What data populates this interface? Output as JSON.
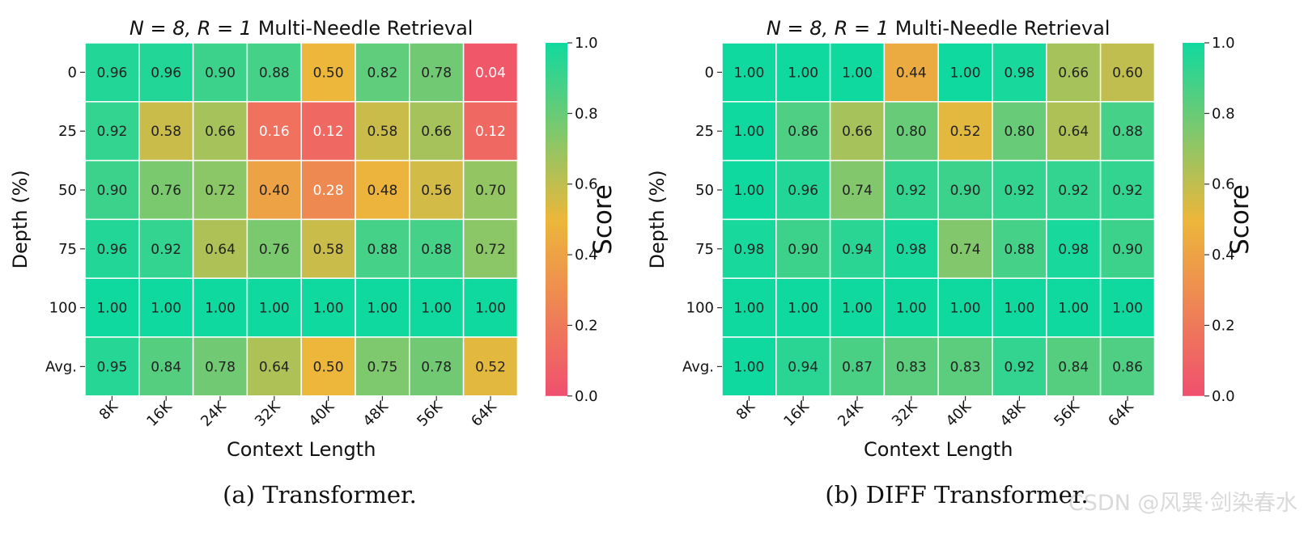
{
  "chart_data": [
    {
      "type": "heatmap",
      "title_math": "N = 8, R = 1",
      "title_text": "Multi-Needle Retrieval",
      "xlabel": "Context Length",
      "ylabel": "Depth (%)",
      "x_categories": [
        "8K",
        "16K",
        "24K",
        "32K",
        "40K",
        "48K",
        "56K",
        "64K"
      ],
      "y_categories": [
        "0",
        "25",
        "50",
        "75",
        "100",
        "Avg."
      ],
      "values": [
        [
          0.96,
          0.96,
          0.9,
          0.88,
          0.5,
          0.82,
          0.78,
          0.04
        ],
        [
          0.92,
          0.58,
          0.66,
          0.16,
          0.12,
          0.58,
          0.66,
          0.12
        ],
        [
          0.9,
          0.76,
          0.72,
          0.4,
          0.28,
          0.48,
          0.56,
          0.7
        ],
        [
          0.96,
          0.92,
          0.64,
          0.76,
          0.58,
          0.88,
          0.88,
          0.72
        ],
        [
          1.0,
          1.0,
          1.0,
          1.0,
          1.0,
          1.0,
          1.0,
          1.0
        ],
        [
          0.95,
          0.84,
          0.78,
          0.64,
          0.5,
          0.75,
          0.78,
          0.52
        ]
      ],
      "colorbar": {
        "label": "Score",
        "range": [
          0.0,
          1.0
        ],
        "ticks": [
          "0.0",
          "0.2",
          "0.4",
          "0.6",
          "0.8",
          "1.0"
        ]
      },
      "caption": "(a) Transformer."
    },
    {
      "type": "heatmap",
      "title_math": "N = 8, R = 1",
      "title_text": "Multi-Needle Retrieval",
      "xlabel": "Context Length",
      "ylabel": "Depth (%)",
      "x_categories": [
        "8K",
        "16K",
        "24K",
        "32K",
        "40K",
        "48K",
        "56K",
        "64K"
      ],
      "y_categories": [
        "0",
        "25",
        "50",
        "75",
        "100",
        "Avg."
      ],
      "values": [
        [
          1.0,
          1.0,
          1.0,
          0.44,
          1.0,
          0.98,
          0.66,
          0.6
        ],
        [
          1.0,
          0.86,
          0.66,
          0.8,
          0.52,
          0.8,
          0.64,
          0.88
        ],
        [
          1.0,
          0.96,
          0.74,
          0.92,
          0.9,
          0.92,
          0.92,
          0.92
        ],
        [
          0.98,
          0.9,
          0.94,
          0.98,
          0.74,
          0.88,
          0.98,
          0.9
        ],
        [
          1.0,
          1.0,
          1.0,
          1.0,
          1.0,
          1.0,
          1.0,
          1.0
        ],
        [
          1.0,
          0.94,
          0.87,
          0.83,
          0.83,
          0.92,
          0.84,
          0.86
        ]
      ],
      "colorbar": {
        "label": "Score",
        "range": [
          0.0,
          1.0
        ],
        "ticks": [
          "0.0",
          "0.2",
          "0.4",
          "0.6",
          "0.8",
          "1.0"
        ]
      },
      "caption": "(b) DIFF Transformer."
    }
  ],
  "colormap": {
    "stops": [
      {
        "v": 0.0,
        "color": "#f0506e"
      },
      {
        "v": 0.5,
        "color": "#ecb73b"
      },
      {
        "v": 1.0,
        "color": "#10d99f"
      }
    ],
    "dark_text_color": "#222222",
    "light_text_color": "#ffffff"
  },
  "watermark": "CSDN @风巽·剑染春水"
}
